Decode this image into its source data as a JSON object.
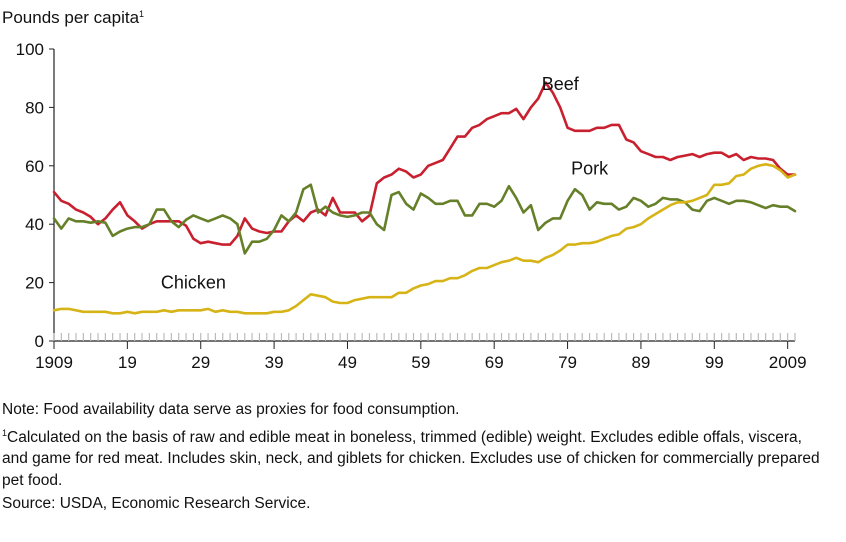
{
  "chart_data": {
    "type": "line",
    "ylabel": "Pounds per capita",
    "ylabel_footnote_mark": "1",
    "ylim": [
      0,
      100
    ],
    "yticks": [
      0,
      20,
      40,
      60,
      80,
      100
    ],
    "xlim": [
      1909,
      2010
    ],
    "xtick_values": [
      1909,
      1919,
      1929,
      1939,
      1949,
      1959,
      1969,
      1979,
      1989,
      1999,
      2009
    ],
    "xtick_labels": [
      "1909",
      "19",
      "29",
      "39",
      "49",
      "59",
      "69",
      "79",
      "89",
      "99",
      "2009"
    ],
    "grid": false,
    "series": [
      {
        "name": "Beef",
        "color": "#c8202f",
        "label_at": [
          1978,
          86
        ],
        "points": [
          [
            1909,
            51
          ],
          [
            1910,
            48
          ],
          [
            1911,
            47
          ],
          [
            1912,
            45
          ],
          [
            1913,
            44
          ],
          [
            1914,
            42.5
          ],
          [
            1915,
            40
          ],
          [
            1916,
            42
          ],
          [
            1917,
            45
          ],
          [
            1918,
            47.5
          ],
          [
            1919,
            43
          ],
          [
            1920,
            41
          ],
          [
            1921,
            38.5
          ],
          [
            1922,
            40
          ],
          [
            1923,
            41
          ],
          [
            1924,
            41
          ],
          [
            1925,
            41
          ],
          [
            1926,
            41
          ],
          [
            1927,
            39.5
          ],
          [
            1928,
            35
          ],
          [
            1929,
            33.5
          ],
          [
            1930,
            34
          ],
          [
            1931,
            33.5
          ],
          [
            1932,
            33
          ],
          [
            1933,
            33
          ],
          [
            1934,
            36
          ],
          [
            1935,
            42
          ],
          [
            1936,
            38.5
          ],
          [
            1937,
            37.5
          ],
          [
            1938,
            37
          ],
          [
            1939,
            37.5
          ],
          [
            1940,
            37.5
          ],
          [
            1941,
            41
          ],
          [
            1942,
            43
          ],
          [
            1943,
            41
          ],
          [
            1944,
            44
          ],
          [
            1945,
            45
          ],
          [
            1946,
            43
          ],
          [
            1947,
            49
          ],
          [
            1948,
            44
          ],
          [
            1949,
            44
          ],
          [
            1950,
            44
          ],
          [
            1951,
            41
          ],
          [
            1952,
            43
          ],
          [
            1953,
            54
          ],
          [
            1954,
            56
          ],
          [
            1955,
            57
          ],
          [
            1956,
            59
          ],
          [
            1957,
            58
          ],
          [
            1958,
            56
          ],
          [
            1959,
            57
          ],
          [
            1960,
            60
          ],
          [
            1961,
            61
          ],
          [
            1962,
            62
          ],
          [
            1963,
            66
          ],
          [
            1964,
            70
          ],
          [
            1965,
            70
          ],
          [
            1966,
            73
          ],
          [
            1967,
            74
          ],
          [
            1968,
            76
          ],
          [
            1969,
            77
          ],
          [
            1970,
            78
          ],
          [
            1971,
            78
          ],
          [
            1972,
            79.5
          ],
          [
            1973,
            76
          ],
          [
            1974,
            80
          ],
          [
            1975,
            83
          ],
          [
            1976,
            88.5
          ],
          [
            1977,
            85
          ],
          [
            1978,
            80
          ],
          [
            1979,
            73
          ],
          [
            1980,
            72
          ],
          [
            1981,
            72
          ],
          [
            1982,
            72
          ],
          [
            1983,
            73
          ],
          [
            1984,
            73
          ],
          [
            1985,
            74
          ],
          [
            1986,
            74
          ],
          [
            1987,
            69
          ],
          [
            1988,
            68
          ],
          [
            1989,
            65
          ],
          [
            1990,
            64
          ],
          [
            1991,
            63
          ],
          [
            1992,
            63
          ],
          [
            1993,
            62
          ],
          [
            1994,
            63
          ],
          [
            1995,
            63.5
          ],
          [
            1996,
            64
          ],
          [
            1997,
            63
          ],
          [
            1998,
            64
          ],
          [
            1999,
            64.5
          ],
          [
            2000,
            64.5
          ],
          [
            2001,
            63
          ],
          [
            2002,
            64
          ],
          [
            2003,
            62
          ],
          [
            2004,
            63
          ],
          [
            2005,
            62.5
          ],
          [
            2006,
            62.5
          ],
          [
            2007,
            62
          ],
          [
            2008,
            59
          ],
          [
            2009,
            57
          ],
          [
            2010,
            57
          ]
        ]
      },
      {
        "name": "Pork",
        "color": "#66802a",
        "label_at": [
          1982,
          57
        ],
        "points": [
          [
            1909,
            42
          ],
          [
            1910,
            38.5
          ],
          [
            1911,
            42
          ],
          [
            1912,
            41
          ],
          [
            1913,
            41
          ],
          [
            1914,
            40.5
          ],
          [
            1915,
            41
          ],
          [
            1916,
            40.5
          ],
          [
            1917,
            36
          ],
          [
            1918,
            37.5
          ],
          [
            1919,
            38.5
          ],
          [
            1920,
            39
          ],
          [
            1921,
            39
          ],
          [
            1922,
            40
          ],
          [
            1923,
            45
          ],
          [
            1924,
            45
          ],
          [
            1925,
            41
          ],
          [
            1926,
            39
          ],
          [
            1927,
            41.5
          ],
          [
            1928,
            43
          ],
          [
            1929,
            42
          ],
          [
            1930,
            41
          ],
          [
            1931,
            42
          ],
          [
            1932,
            43
          ],
          [
            1933,
            42
          ],
          [
            1934,
            40
          ],
          [
            1935,
            30
          ],
          [
            1936,
            34
          ],
          [
            1937,
            34
          ],
          [
            1938,
            35
          ],
          [
            1939,
            38
          ],
          [
            1940,
            43
          ],
          [
            1941,
            41
          ],
          [
            1942,
            44
          ],
          [
            1943,
            52
          ],
          [
            1944,
            53.5
          ],
          [
            1945,
            44
          ],
          [
            1946,
            46
          ],
          [
            1947,
            44
          ],
          [
            1948,
            43
          ],
          [
            1949,
            42.5
          ],
          [
            1950,
            43
          ],
          [
            1951,
            44
          ],
          [
            1952,
            44
          ],
          [
            1953,
            40
          ],
          [
            1954,
            38
          ],
          [
            1955,
            50
          ],
          [
            1956,
            51
          ],
          [
            1957,
            47
          ],
          [
            1958,
            45
          ],
          [
            1959,
            50.5
          ],
          [
            1960,
            49
          ],
          [
            1961,
            47
          ],
          [
            1962,
            47
          ],
          [
            1963,
            48
          ],
          [
            1964,
            48
          ],
          [
            1965,
            43
          ],
          [
            1966,
            43
          ],
          [
            1967,
            47
          ],
          [
            1968,
            47
          ],
          [
            1969,
            46
          ],
          [
            1970,
            48
          ],
          [
            1971,
            53
          ],
          [
            1972,
            49
          ],
          [
            1973,
            44
          ],
          [
            1974,
            46.5
          ],
          [
            1975,
            38
          ],
          [
            1976,
            40.5
          ],
          [
            1977,
            42
          ],
          [
            1978,
            42
          ],
          [
            1979,
            48
          ],
          [
            1980,
            52
          ],
          [
            1981,
            50
          ],
          [
            1982,
            45
          ],
          [
            1983,
            47.5
          ],
          [
            1984,
            47
          ],
          [
            1985,
            47
          ],
          [
            1986,
            45
          ],
          [
            1987,
            46
          ],
          [
            1988,
            49
          ],
          [
            1989,
            48
          ],
          [
            1990,
            46
          ],
          [
            1991,
            47
          ],
          [
            1992,
            49
          ],
          [
            1993,
            48.5
          ],
          [
            1994,
            48.5
          ],
          [
            1995,
            47.5
          ],
          [
            1996,
            45
          ],
          [
            1997,
            44.5
          ],
          [
            1998,
            48
          ],
          [
            1999,
            49
          ],
          [
            2000,
            48
          ],
          [
            2001,
            47
          ],
          [
            2002,
            48
          ],
          [
            2003,
            48
          ],
          [
            2004,
            47.5
          ],
          [
            2005,
            46.5
          ],
          [
            2006,
            45.5
          ],
          [
            2007,
            46.5
          ],
          [
            2008,
            46
          ],
          [
            2009,
            46
          ],
          [
            2010,
            44.5
          ]
        ]
      },
      {
        "name": "Chicken",
        "color": "#d6b418",
        "label_at": [
          1928,
          18
        ],
        "points": [
          [
            1909,
            10.5
          ],
          [
            1910,
            11
          ],
          [
            1911,
            11
          ],
          [
            1912,
            10.5
          ],
          [
            1913,
            10
          ],
          [
            1914,
            10
          ],
          [
            1915,
            10
          ],
          [
            1916,
            10
          ],
          [
            1917,
            9.5
          ],
          [
            1918,
            9.5
          ],
          [
            1919,
            10
          ],
          [
            1920,
            9.5
          ],
          [
            1921,
            10
          ],
          [
            1922,
            10
          ],
          [
            1923,
            10
          ],
          [
            1924,
            10.5
          ],
          [
            1925,
            10
          ],
          [
            1926,
            10.5
          ],
          [
            1927,
            10.5
          ],
          [
            1928,
            10.5
          ],
          [
            1929,
            10.5
          ],
          [
            1930,
            11
          ],
          [
            1931,
            10
          ],
          [
            1932,
            10.5
          ],
          [
            1933,
            10
          ],
          [
            1934,
            10
          ],
          [
            1935,
            9.5
          ],
          [
            1936,
            9.5
          ],
          [
            1937,
            9.5
          ],
          [
            1938,
            9.5
          ],
          [
            1939,
            10
          ],
          [
            1940,
            10
          ],
          [
            1941,
            10.5
          ],
          [
            1942,
            12
          ],
          [
            1943,
            14
          ],
          [
            1944,
            16
          ],
          [
            1945,
            15.5
          ],
          [
            1946,
            15
          ],
          [
            1947,
            13.5
          ],
          [
            1948,
            13
          ],
          [
            1949,
            13
          ],
          [
            1950,
            14
          ],
          [
            1951,
            14.5
          ],
          [
            1952,
            15
          ],
          [
            1953,
            15
          ],
          [
            1954,
            15
          ],
          [
            1955,
            15
          ],
          [
            1956,
            16.5
          ],
          [
            1957,
            16.5
          ],
          [
            1958,
            18
          ],
          [
            1959,
            19
          ],
          [
            1960,
            19.5
          ],
          [
            1961,
            20.5
          ],
          [
            1962,
            20.5
          ],
          [
            1963,
            21.5
          ],
          [
            1964,
            21.5
          ],
          [
            1965,
            22.5
          ],
          [
            1966,
            24
          ],
          [
            1967,
            25
          ],
          [
            1968,
            25
          ],
          [
            1969,
            26
          ],
          [
            1970,
            27
          ],
          [
            1971,
            27.5
          ],
          [
            1972,
            28.5
          ],
          [
            1973,
            27.5
          ],
          [
            1974,
            27.5
          ],
          [
            1975,
            27
          ],
          [
            1976,
            28.5
          ],
          [
            1977,
            29.5
          ],
          [
            1978,
            31
          ],
          [
            1979,
            33
          ],
          [
            1980,
            33
          ],
          [
            1981,
            33.5
          ],
          [
            1982,
            33.5
          ],
          [
            1983,
            34
          ],
          [
            1984,
            35
          ],
          [
            1985,
            36
          ],
          [
            1986,
            36.5
          ],
          [
            1987,
            38.5
          ],
          [
            1988,
            39
          ],
          [
            1989,
            40
          ],
          [
            1990,
            42
          ],
          [
            1991,
            43.5
          ],
          [
            1992,
            45
          ],
          [
            1993,
            46.5
          ],
          [
            1994,
            47.5
          ],
          [
            1995,
            47.5
          ],
          [
            1996,
            48
          ],
          [
            1997,
            49
          ],
          [
            1998,
            50
          ],
          [
            1999,
            53.5
          ],
          [
            2000,
            53.5
          ],
          [
            2001,
            54
          ],
          [
            2002,
            56.5
          ],
          [
            2003,
            57
          ],
          [
            2004,
            59
          ],
          [
            2005,
            60
          ],
          [
            2006,
            60.5
          ],
          [
            2007,
            60
          ],
          [
            2008,
            58.5
          ],
          [
            2009,
            56
          ],
          [
            2010,
            57
          ]
        ]
      }
    ]
  },
  "notes": {
    "note": "Note: Food availability data serve as proxies for food consumption.",
    "footnote_mark": "1",
    "footnote": "Calculated on the basis of raw and edible meat in boneless, trimmed (edible) weight. Excludes edible offals, viscera, and game for red meat. Includes skin, neck, and giblets for chicken. Excludes use of chicken for commercially prepared pet food.",
    "source": "Source:  USDA, Economic Research Service."
  }
}
